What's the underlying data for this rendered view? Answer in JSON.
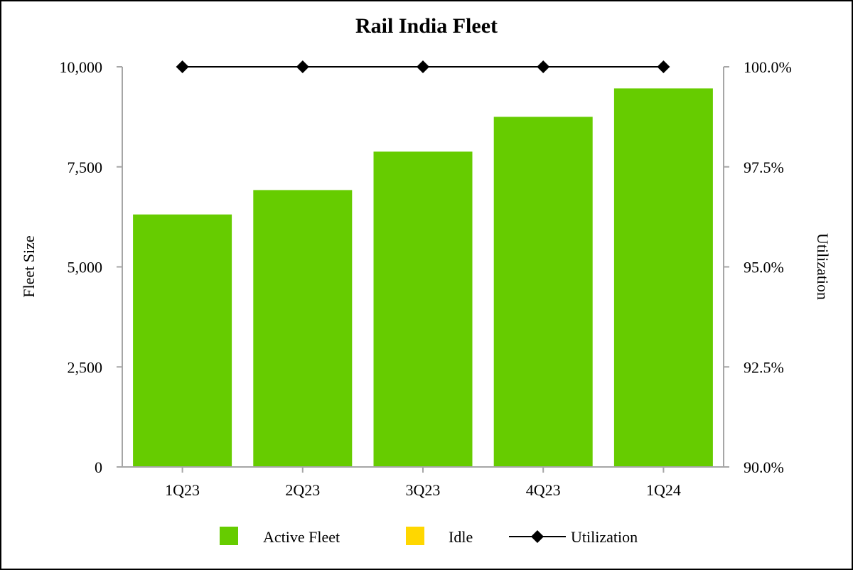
{
  "chart_data": {
    "type": "bar",
    "title": "Rail India Fleet",
    "categories": [
      "1Q23",
      "2Q23",
      "3Q23",
      "4Q23",
      "1Q24"
    ],
    "series": [
      {
        "name": "Active Fleet",
        "kind": "bar",
        "axis": "left",
        "color": "#66cc00",
        "values": [
          6310,
          6920,
          7880,
          8750,
          9460
        ]
      },
      {
        "name": "Idle",
        "kind": "bar",
        "axis": "left",
        "color": "#ffd700",
        "values": [
          0,
          0,
          0,
          0,
          0
        ]
      },
      {
        "name": "Utilization",
        "kind": "line",
        "axis": "right",
        "color": "#000000",
        "values": [
          100.0,
          100.0,
          100.0,
          100.0,
          100.0
        ]
      }
    ],
    "ylabel": "Fleet Size",
    "y2label": "Utilization",
    "ylim": [
      0,
      10000
    ],
    "y2lim": [
      90.0,
      100.0
    ],
    "yticks": [
      0,
      2500,
      5000,
      7500,
      10000
    ],
    "yticklabels": [
      "0",
      "2,500",
      "5,000",
      "7,500",
      "10,000"
    ],
    "y2ticks": [
      90.0,
      92.5,
      95.0,
      97.5,
      100.0
    ],
    "y2ticklabels": [
      "90.0%",
      "92.5%",
      "95.0%",
      "97.5%",
      "100.0%"
    ],
    "grid": false,
    "legend_position": "bottom"
  }
}
